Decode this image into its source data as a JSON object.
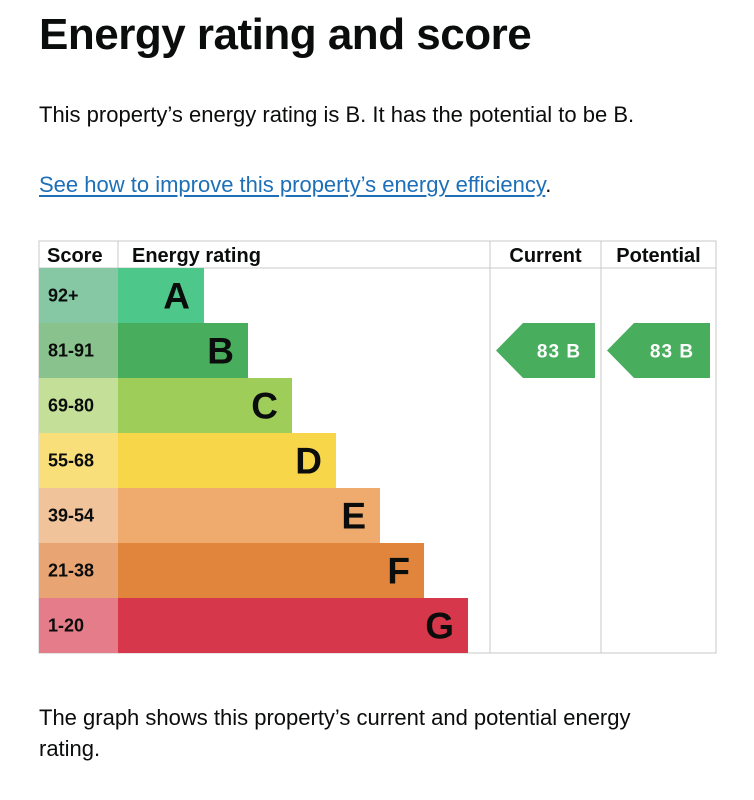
{
  "title": "Energy rating and score",
  "intro": "This property’s energy rating is B. It has the potential to be B.",
  "link": {
    "text": "See how to improve this property’s energy efficiency",
    "suffix": "."
  },
  "chart_data": {
    "type": "table",
    "columns": [
      "Score",
      "Energy rating",
      "Current",
      "Potential"
    ],
    "bands": [
      {
        "score": "92+",
        "letter": "A",
        "color": "#4ec88a",
        "score_bg": "#86c8a4"
      },
      {
        "score": "81-91",
        "letter": "B",
        "color": "#48ae5e",
        "score_bg": "#8ac28e"
      },
      {
        "score": "69-80",
        "letter": "C",
        "color": "#9fcd5a",
        "score_bg": "#c3df98"
      },
      {
        "score": "55-68",
        "letter": "D",
        "color": "#f7d64a",
        "score_bg": "#f8df79"
      },
      {
        "score": "39-54",
        "letter": "E",
        "color": "#efaa6e",
        "score_bg": "#f1c39b"
      },
      {
        "score": "21-38",
        "letter": "F",
        "color": "#e2853c",
        "score_bg": "#e8a472"
      },
      {
        "score": "1-20",
        "letter": "G",
        "color": "#d7374b",
        "score_bg": "#e57c89"
      }
    ],
    "current": {
      "score": 83,
      "band": "B",
      "label": "83 B",
      "color": "#48ae5e"
    },
    "potential": {
      "score": 83,
      "band": "B",
      "label": "83 B",
      "color": "#48ae5e"
    }
  },
  "footer": "The graph shows this property’s current and potential energy rating."
}
